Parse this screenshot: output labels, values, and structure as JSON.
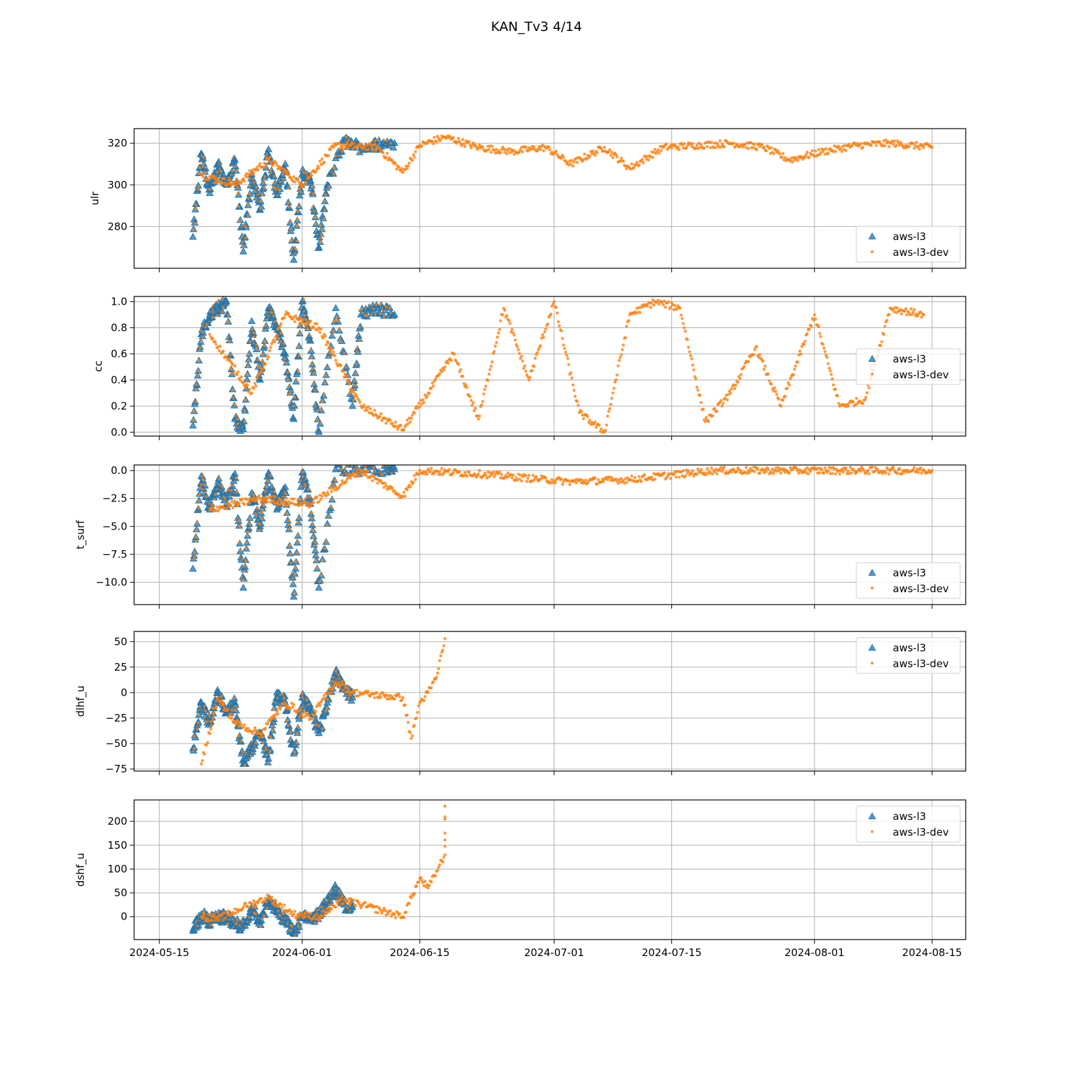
{
  "title": "KAN_Tv3 4/14",
  "colors": {
    "aws_l3": "#1f77b4",
    "aws_l3_dev": "#ff7f0e",
    "grid": "#b0b0b0"
  },
  "x_ticks": [
    "2024-05-15",
    "2024-06-01",
    "2024-06-15",
    "2024-07-01",
    "2024-07-15",
    "2024-08-01",
    "2024-08-15"
  ],
  "chart_data": [
    {
      "type": "scatter",
      "ylabel": "ulr",
      "ylim": [
        260,
        327
      ],
      "yticks": [
        280,
        300,
        320
      ],
      "grid": true,
      "legend": "bottom-right",
      "series": [
        {
          "name": "aws-l3",
          "marker": "triangle",
          "x": [
            "2024-05-19",
            "2024-05-20",
            "2024-05-21",
            "2024-05-22",
            "2024-05-23",
            "2024-05-24",
            "2024-05-25",
            "2024-05-26",
            "2024-05-27",
            "2024-05-28",
            "2024-05-29",
            "2024-05-30",
            "2024-05-31",
            "2024-06-01",
            "2024-06-02",
            "2024-06-03",
            "2024-06-04",
            "2024-06-06",
            "2024-06-08",
            "2024-06-10",
            "2024-06-12"
          ],
          "y": [
            275,
            315,
            296,
            310,
            300,
            312,
            268,
            305,
            288,
            317,
            295,
            310,
            264,
            305,
            302,
            270,
            300,
            321,
            318,
            319,
            320
          ]
        },
        {
          "name": "aws-l3-dev",
          "marker": "dot",
          "x": [
            "2024-05-20",
            "2024-05-24",
            "2024-05-28",
            "2024-06-01",
            "2024-06-05",
            "2024-06-10",
            "2024-06-13",
            "2024-06-15",
            "2024-06-18",
            "2024-06-22",
            "2024-06-26",
            "2024-06-30",
            "2024-07-03",
            "2024-07-07",
            "2024-07-10",
            "2024-07-14",
            "2024-07-18",
            "2024-07-22",
            "2024-07-26",
            "2024-07-29",
            "2024-08-02",
            "2024-08-06",
            "2024-08-10",
            "2024-08-15"
          ],
          "y": [
            305,
            300,
            312,
            300,
            319,
            318,
            306,
            319,
            323,
            318,
            316,
            318,
            310,
            318,
            308,
            318,
            319,
            320,
            318,
            312,
            316,
            319,
            320,
            318
          ]
        }
      ]
    },
    {
      "type": "scatter",
      "ylabel": "cc",
      "ylim": [
        -0.03,
        1.04
      ],
      "yticks": [
        0.0,
        0.2,
        0.4,
        0.6,
        0.8,
        1.0
      ],
      "grid": true,
      "legend": "center-right",
      "series": [
        {
          "name": "aws-l3",
          "marker": "triangle",
          "x": [
            "2024-05-19",
            "2024-05-20",
            "2024-05-21",
            "2024-05-22",
            "2024-05-23",
            "2024-05-24",
            "2024-05-25",
            "2024-05-26",
            "2024-05-27",
            "2024-05-28",
            "2024-05-29",
            "2024-05-30",
            "2024-05-31",
            "2024-06-01",
            "2024-06-02",
            "2024-06-03",
            "2024-06-05",
            "2024-06-07",
            "2024-06-08",
            "2024-06-10",
            "2024-06-12"
          ],
          "y": [
            0.05,
            0.75,
            0.9,
            0.95,
            1.0,
            0.1,
            0.02,
            0.85,
            0.4,
            0.95,
            0.8,
            0.6,
            0.1,
            1.0,
            0.7,
            0.0,
            0.95,
            0.2,
            0.9,
            0.95,
            0.9
          ]
        },
        {
          "name": "aws-l3-dev",
          "marker": "dot",
          "x": [
            "2024-05-21",
            "2024-05-26",
            "2024-05-30",
            "2024-06-03",
            "2024-06-08",
            "2024-06-13",
            "2024-06-16",
            "2024-06-19",
            "2024-06-22",
            "2024-06-25",
            "2024-06-28",
            "2024-07-01",
            "2024-07-04",
            "2024-07-07",
            "2024-07-10",
            "2024-07-13",
            "2024-07-16",
            "2024-07-19",
            "2024-07-22",
            "2024-07-25",
            "2024-07-28",
            "2024-08-01",
            "2024-08-04",
            "2024-08-07",
            "2024-08-10",
            "2024-08-14"
          ],
          "y": [
            0.75,
            0.3,
            0.9,
            0.8,
            0.2,
            0.02,
            0.3,
            0.6,
            0.1,
            0.95,
            0.4,
            1.0,
            0.15,
            0.0,
            0.9,
            1.0,
            0.95,
            0.08,
            0.3,
            0.65,
            0.2,
            0.9,
            0.2,
            0.25,
            0.95,
            0.9
          ]
        }
      ]
    },
    {
      "type": "scatter",
      "ylabel": "t_surf",
      "ylim": [
        -12.0,
        0.5
      ],
      "yticks": [
        0.0,
        -2.5,
        -5.0,
        -7.5,
        -10.0
      ],
      "grid": true,
      "legend": "bottom-right",
      "series": [
        {
          "name": "aws-l3",
          "marker": "triangle",
          "x": [
            "2024-05-19",
            "2024-05-20",
            "2024-05-21",
            "2024-05-22",
            "2024-05-23",
            "2024-05-24",
            "2024-05-25",
            "2024-05-26",
            "2024-05-27",
            "2024-05-28",
            "2024-05-29",
            "2024-05-30",
            "2024-05-31",
            "2024-06-01",
            "2024-06-02",
            "2024-06-03",
            "2024-06-05",
            "2024-06-08",
            "2024-06-11",
            "2024-06-12"
          ],
          "y": [
            -8.8,
            -0.5,
            -3.5,
            -1.0,
            -3.0,
            -0.3,
            -10.5,
            -2.0,
            -5.0,
            -0.2,
            -3.5,
            -1.5,
            -11.3,
            -0.2,
            -3.0,
            -10.5,
            0.1,
            0.1,
            0.1,
            0.1
          ]
        },
        {
          "name": "aws-l3-dev",
          "marker": "dot",
          "x": [
            "2024-05-21",
            "2024-05-27",
            "2024-06-02",
            "2024-06-08",
            "2024-06-13",
            "2024-06-15",
            "2024-06-22",
            "2024-07-03",
            "2024-07-10",
            "2024-07-20",
            "2024-07-30",
            "2024-08-10",
            "2024-08-15"
          ],
          "y": [
            -3.5,
            -2.5,
            -3.0,
            0.0,
            -2.3,
            0.0,
            -0.3,
            -1.0,
            -0.8,
            0.0,
            0.0,
            0.0,
            0.0
          ]
        }
      ]
    },
    {
      "type": "scatter",
      "ylabel": "dlhf_u",
      "ylim": [
        -77,
        60
      ],
      "yticks": [
        50,
        25,
        0,
        -25,
        -50,
        -75
      ],
      "grid": true,
      "legend": "top-right",
      "series": [
        {
          "name": "aws-l3",
          "marker": "triangle",
          "x": [
            "2024-05-19",
            "2024-05-20",
            "2024-05-21",
            "2024-05-22",
            "2024-05-23",
            "2024-05-24",
            "2024-05-25",
            "2024-05-26",
            "2024-05-27",
            "2024-05-28",
            "2024-05-29",
            "2024-05-30",
            "2024-05-31",
            "2024-06-01",
            "2024-06-02",
            "2024-06-03",
            "2024-06-04",
            "2024-06-05",
            "2024-06-06",
            "2024-06-07"
          ],
          "y": [
            -55,
            -10,
            -30,
            0,
            -20,
            -10,
            -70,
            -55,
            -40,
            -65,
            0,
            -10,
            -60,
            -5,
            -15,
            -40,
            -10,
            20,
            5,
            -5
          ]
        },
        {
          "name": "aws-l3-dev",
          "marker": "dot",
          "x": [
            "2024-05-20",
            "2024-05-22",
            "2024-05-24",
            "2024-05-27",
            "2024-05-30",
            "2024-06-02",
            "2024-06-05",
            "2024-06-07",
            "2024-06-13",
            "2024-06-14",
            "2024-06-15",
            "2024-06-16",
            "2024-06-17",
            "2024-06-18"
          ],
          "y": [
            -70,
            -5,
            -30,
            -40,
            -10,
            -25,
            10,
            0,
            -5,
            -45,
            -10,
            0,
            15,
            53
          ]
        }
      ]
    },
    {
      "type": "scatter",
      "ylabel": "dshf_u",
      "ylim": [
        -48,
        245
      ],
      "yticks": [
        0,
        50,
        100,
        150,
        200
      ],
      "grid": true,
      "legend": "top-right",
      "series": [
        {
          "name": "aws-l3",
          "marker": "triangle",
          "x": [
            "2024-05-19",
            "2024-05-20",
            "2024-05-21",
            "2024-05-22",
            "2024-05-23",
            "2024-05-24",
            "2024-05-25",
            "2024-05-26",
            "2024-05-27",
            "2024-05-28",
            "2024-05-29",
            "2024-05-30",
            "2024-05-31",
            "2024-06-01",
            "2024-06-02",
            "2024-06-03",
            "2024-06-04",
            "2024-06-05",
            "2024-06-06",
            "2024-06-07"
          ],
          "y": [
            -30,
            5,
            -10,
            -2,
            0,
            -15,
            -20,
            20,
            -10,
            30,
            10,
            -5,
            -35,
            0,
            -5,
            5,
            30,
            60,
            25,
            20
          ]
        },
        {
          "name": "aws-l3-dev",
          "marker": "dot",
          "x": [
            "2024-05-20",
            "2024-05-22",
            "2024-05-25",
            "2024-05-28",
            "2024-05-31",
            "2024-06-03",
            "2024-06-06",
            "2024-06-13",
            "2024-06-14",
            "2024-06-15",
            "2024-06-16",
            "2024-06-17",
            "2024-06-18",
            "2024-06-18"
          ],
          "y": [
            0,
            -5,
            20,
            40,
            5,
            0,
            35,
            0,
            40,
            80,
            60,
            95,
            130,
            232
          ]
        }
      ]
    }
  ]
}
